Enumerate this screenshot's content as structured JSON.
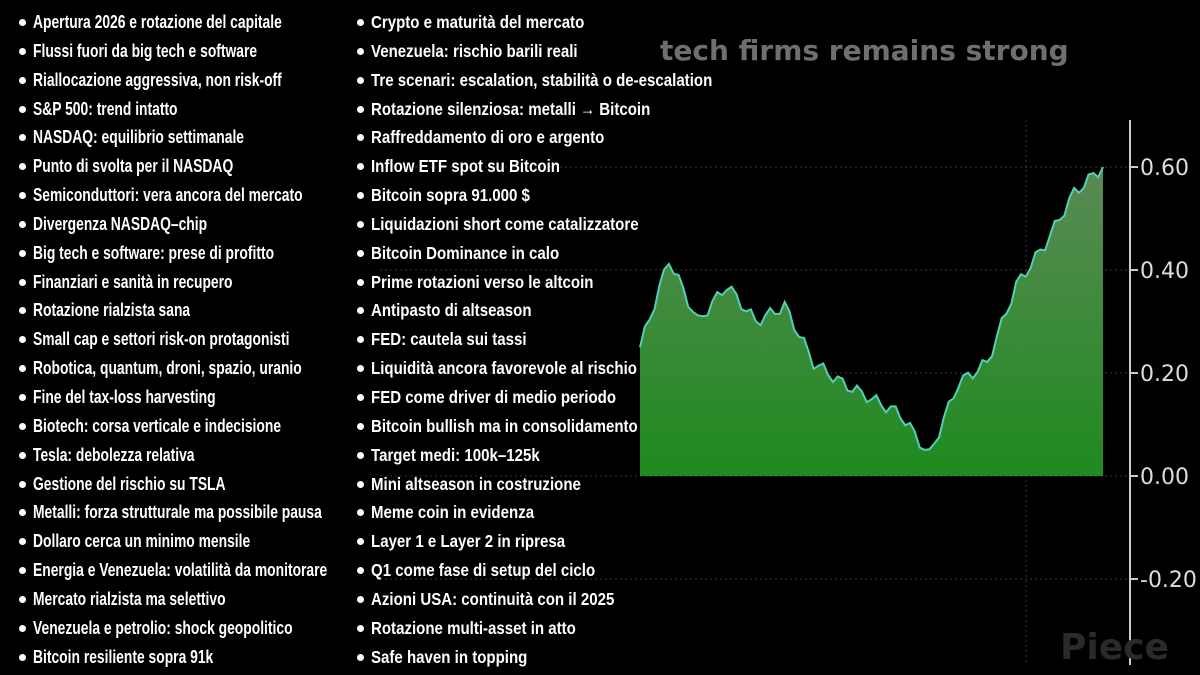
{
  "background": {
    "title_fragment": "tech firms remains strong",
    "corner_word": "Piece",
    "y_ticks": [
      "0.60",
      "0.40",
      "0.20",
      "0.00",
      "-0.20"
    ],
    "area_color": "#1f8a1f",
    "line_color": "#4fd1b8"
  },
  "chart_data": {
    "type": "area",
    "y_ticks": [
      0.6,
      0.4,
      0.2,
      0.0,
      -0.2
    ],
    "ylim": [
      -0.3,
      0.7
    ],
    "values": [
      0.25,
      0.42,
      0.3,
      0.37,
      0.3,
      0.33,
      0.22,
      0.18,
      0.15,
      0.12,
      0.04,
      0.18,
      0.22,
      0.37,
      0.45,
      0.55,
      0.6
    ],
    "grid": true
  },
  "left_items": [
    "Apertura 2026 e rotazione del capitale",
    "Flussi fuori da big tech e software",
    "Riallocazione aggressiva, non risk-off",
    "S&P 500: trend intatto",
    "NASDAQ: equilibrio settimanale",
    "Punto di svolta per il NASDAQ",
    "Semiconduttori: vera ancora del mercato",
    "Divergenza NASDAQ–chip",
    "Big tech e software: prese di profitto",
    "Finanziari e sanità in recupero",
    "Rotazione rialzista sana",
    "Small cap e settori risk-on protagonisti",
    "Robotica, quantum, droni, spazio, uranio",
    "Fine del tax-loss harvesting",
    "Biotech: corsa verticale e indecisione",
    "Tesla: debolezza relativa",
    "Gestione del rischio su TSLA",
    "Metalli: forza strutturale ma possibile pausa",
    "Dollaro cerca un minimo mensile",
    "Energia e Venezuela: volatilità da monitorare",
    "Mercato rialzista ma selettivo",
    "Venezuela e petrolio: shock geopolitico",
    "Bitcoin resiliente sopra 91k"
  ],
  "right_items": [
    "Crypto e maturità del mercato",
    "Venezuela: rischio barili reali",
    "Tre scenari: escalation, stabilità o de-escalation",
    "Rotazione silenziosa: metalli → Bitcoin",
    "Raffreddamento di oro e argento",
    "Inflow ETF spot su Bitcoin",
    "Bitcoin sopra 91.000 $",
    "Liquidazioni short come catalizzatore",
    "Bitcoin Dominance in calo",
    "Prime rotazioni verso le altcoin",
    "Antipasto di altseason",
    "FED: cautela sui tassi",
    "Liquidità ancora favorevole al rischio",
    "FED come driver di medio periodo",
    "Bitcoin bullish ma in consolidamento",
    "Target medi: 100k–125k",
    "Mini altseason in costruzione",
    "Meme coin in evidenza",
    "Layer 1 e Layer 2 in ripresa",
    "Q1 come fase di setup del ciclo",
    "Azioni USA: continuità con il 2025",
    "Rotazione multi-asset in atto",
    "Safe haven in topping"
  ]
}
